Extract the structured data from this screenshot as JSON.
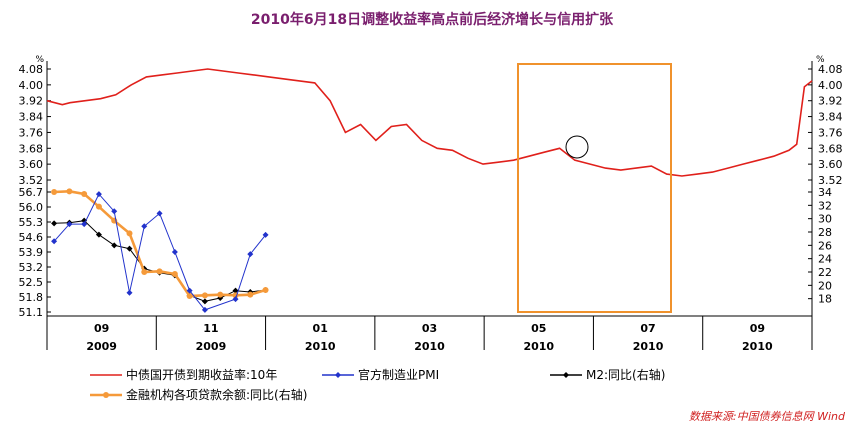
{
  "chart_data": {
    "title": "2010年6月18日调整收益率高点前后经济增长与信用扩张",
    "source": "数据来源:中国债券信息网 Wind",
    "top_panel": {
      "type": "line",
      "unit_left": "%",
      "unit_right": "%",
      "ylim": [
        3.52,
        4.08
      ],
      "yticks": [
        "4.08",
        "4.00",
        "3.92",
        "3.84",
        "3.76",
        "3.68",
        "3.60",
        "3.52"
      ],
      "series": [
        {
          "name": "中债国开债到期收益率:10年",
          "color": "#e0201b",
          "t": [
            0.0,
            0.02,
            0.03,
            0.05,
            0.07,
            0.09,
            0.11,
            0.13,
            0.15,
            0.17,
            0.19,
            0.21,
            0.23,
            0.25,
            0.27,
            0.29,
            0.31,
            0.33,
            0.35,
            0.37,
            0.39,
            0.41,
            0.43,
            0.45,
            0.47,
            0.49,
            0.51,
            0.53,
            0.55,
            0.57,
            0.59,
            0.61,
            0.63,
            0.65,
            0.67,
            0.69,
            0.71,
            0.73,
            0.75,
            0.77,
            0.79,
            0.81,
            0.83,
            0.85,
            0.87,
            0.89,
            0.91,
            0.93,
            0.95,
            0.97,
            0.98,
            0.99,
            1.0
          ],
          "v": [
            3.92,
            3.9,
            3.91,
            3.92,
            3.93,
            3.95,
            4.0,
            4.04,
            4.05,
            4.06,
            4.07,
            4.08,
            4.07,
            4.06,
            4.05,
            4.04,
            4.03,
            4.02,
            4.01,
            3.92,
            3.76,
            3.8,
            3.72,
            3.79,
            3.8,
            3.72,
            3.68,
            3.67,
            3.63,
            3.6,
            3.61,
            3.62,
            3.64,
            3.66,
            3.68,
            3.62,
            3.6,
            3.58,
            3.57,
            3.58,
            3.59,
            3.55,
            3.54,
            3.55,
            3.56,
            3.58,
            3.6,
            3.62,
            3.64,
            3.67,
            3.7,
            3.99,
            4.02
          ]
        }
      ]
    },
    "bottom_panel": {
      "type": "line",
      "ylim_left": [
        51.1,
        56.7
      ],
      "yticks_left": [
        "56.7",
        "56.0",
        "55.3",
        "54.6",
        "53.9",
        "53.2",
        "52.5",
        "51.8",
        "51.1"
      ],
      "ylim_right": [
        16,
        34
      ],
      "yticks_right": [
        "34",
        "32",
        "30",
        "28",
        "26",
        "24",
        "22",
        "20",
        "18"
      ],
      "series": [
        {
          "name": "官方制造业PMI",
          "axis": "left",
          "color": "#2233cc",
          "marker": "diamond",
          "t": [
            0.065,
            0.205,
            0.34,
            0.475,
            0.615,
            0.755,
            0.89,
            1.03,
            1.17,
            1.305,
            1.445,
            1.585,
            1.725,
            1.86,
            2.0,
            2.14
          ],
          "v": [
            54.4,
            55.2,
            55.2,
            56.6,
            55.8,
            52.0,
            55.1,
            55.7,
            53.9,
            52.1,
            51.2,
            null,
            51.7,
            53.8,
            54.7,
            null
          ]
        },
        {
          "name": "M2:同比(右轴)",
          "axis": "right",
          "color": "#000000",
          "marker": "diamond",
          "t": [
            0.065,
            0.205,
            0.34,
            0.475,
            0.615,
            0.755,
            0.89,
            1.03,
            1.17,
            1.305,
            1.445,
            1.585,
            1.725,
            1.86,
            2.0,
            2.14
          ],
          "v": [
            29.3,
            29.4,
            29.7,
            27.6,
            26.0,
            25.5,
            22.5,
            21.9,
            21.5,
            18.5,
            17.6,
            18.1,
            19.2,
            19.0,
            19.3,
            null
          ]
        },
        {
          "name": "金融机构各项贷款余额:同比(右轴)",
          "axis": "right",
          "color": "#f59a3a",
          "marker": "circle",
          "t": [
            0.065,
            0.205,
            0.34,
            0.475,
            0.615,
            0.755,
            0.89,
            1.03,
            1.17,
            1.305,
            1.445,
            1.585,
            1.725,
            1.86,
            2.0,
            2.14
          ],
          "v": [
            34.0,
            34.1,
            33.7,
            31.8,
            29.7,
            27.8,
            22.0,
            22.1,
            21.7,
            18.4,
            18.5,
            18.6,
            18.5,
            18.6,
            19.3,
            null
          ]
        }
      ]
    },
    "x_ticks": [
      {
        "month": "09",
        "year": "2009"
      },
      {
        "month": "11",
        "year": "2009"
      },
      {
        "month": "01",
        "year": "2010"
      },
      {
        "month": "03",
        "year": "2010"
      },
      {
        "month": "05",
        "year": "2010"
      },
      {
        "month": "07",
        "year": "2010"
      },
      {
        "month": "09",
        "year": "2010"
      }
    ],
    "highlight_box_color": "#f0922c",
    "legend_placement": "bottom"
  }
}
